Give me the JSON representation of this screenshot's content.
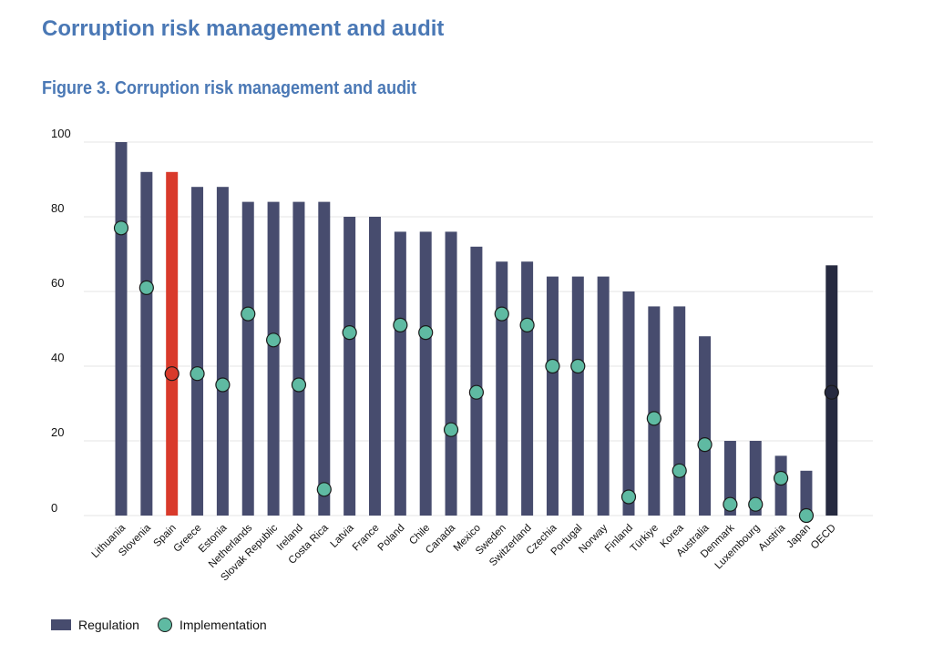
{
  "header": {
    "section_title": "Corruption risk management and audit",
    "figure_title": "Figure 3. Corruption risk management and audit"
  },
  "legend": {
    "regulation_label": "Regulation",
    "implementation_label": "Implementation"
  },
  "colors": {
    "regulation_bar": "#474c6e",
    "highlight_bar": "#d93a2b",
    "average_bar": "#262a40",
    "implementation_dot": "#5fbaa2",
    "dot_outline": "#1a1a1a",
    "title": "#4a78b5",
    "gridline": "#e6e6e6"
  },
  "chart_data": {
    "type": "bar",
    "title": "Figure 3. Corruption risk management and audit",
    "xlabel": "",
    "ylabel": "",
    "ylim": [
      0,
      100
    ],
    "yticks": [
      0,
      20,
      40,
      60,
      80,
      100
    ],
    "grid": true,
    "legend_position": "bottom-left",
    "highlight_category": "Spain",
    "average_category": "OECD",
    "categories": [
      "Lithuania",
      "Slovenia",
      "Spain",
      "Greece",
      "Estonia",
      "Netherlands",
      "Slovak Republic",
      "Ireland",
      "Costa Rica",
      "Latvia",
      "France",
      "Poland",
      "Chile",
      "Canada",
      "Mexico",
      "Sweden",
      "Switzerland",
      "Czechia",
      "Portugal",
      "Norway",
      "Finland",
      "Türkiye",
      "Korea",
      "Australia",
      "Denmark",
      "Luxembourg",
      "Austria",
      "Japan",
      "OECD"
    ],
    "series": [
      {
        "name": "Regulation",
        "kind": "bar",
        "values": [
          100,
          92,
          92,
          88,
          88,
          84,
          84,
          84,
          84,
          80,
          80,
          76,
          76,
          76,
          72,
          68,
          68,
          64,
          64,
          64,
          60,
          56,
          56,
          48,
          20,
          20,
          16,
          12,
          67
        ]
      },
      {
        "name": "Implementation",
        "kind": "dot",
        "values": [
          77,
          61,
          38,
          38,
          35,
          54,
          47,
          35,
          7,
          49,
          null,
          51,
          49,
          23,
          33,
          54,
          51,
          40,
          40,
          null,
          5,
          26,
          12,
          19,
          3,
          3,
          10,
          0,
          33
        ]
      }
    ]
  }
}
